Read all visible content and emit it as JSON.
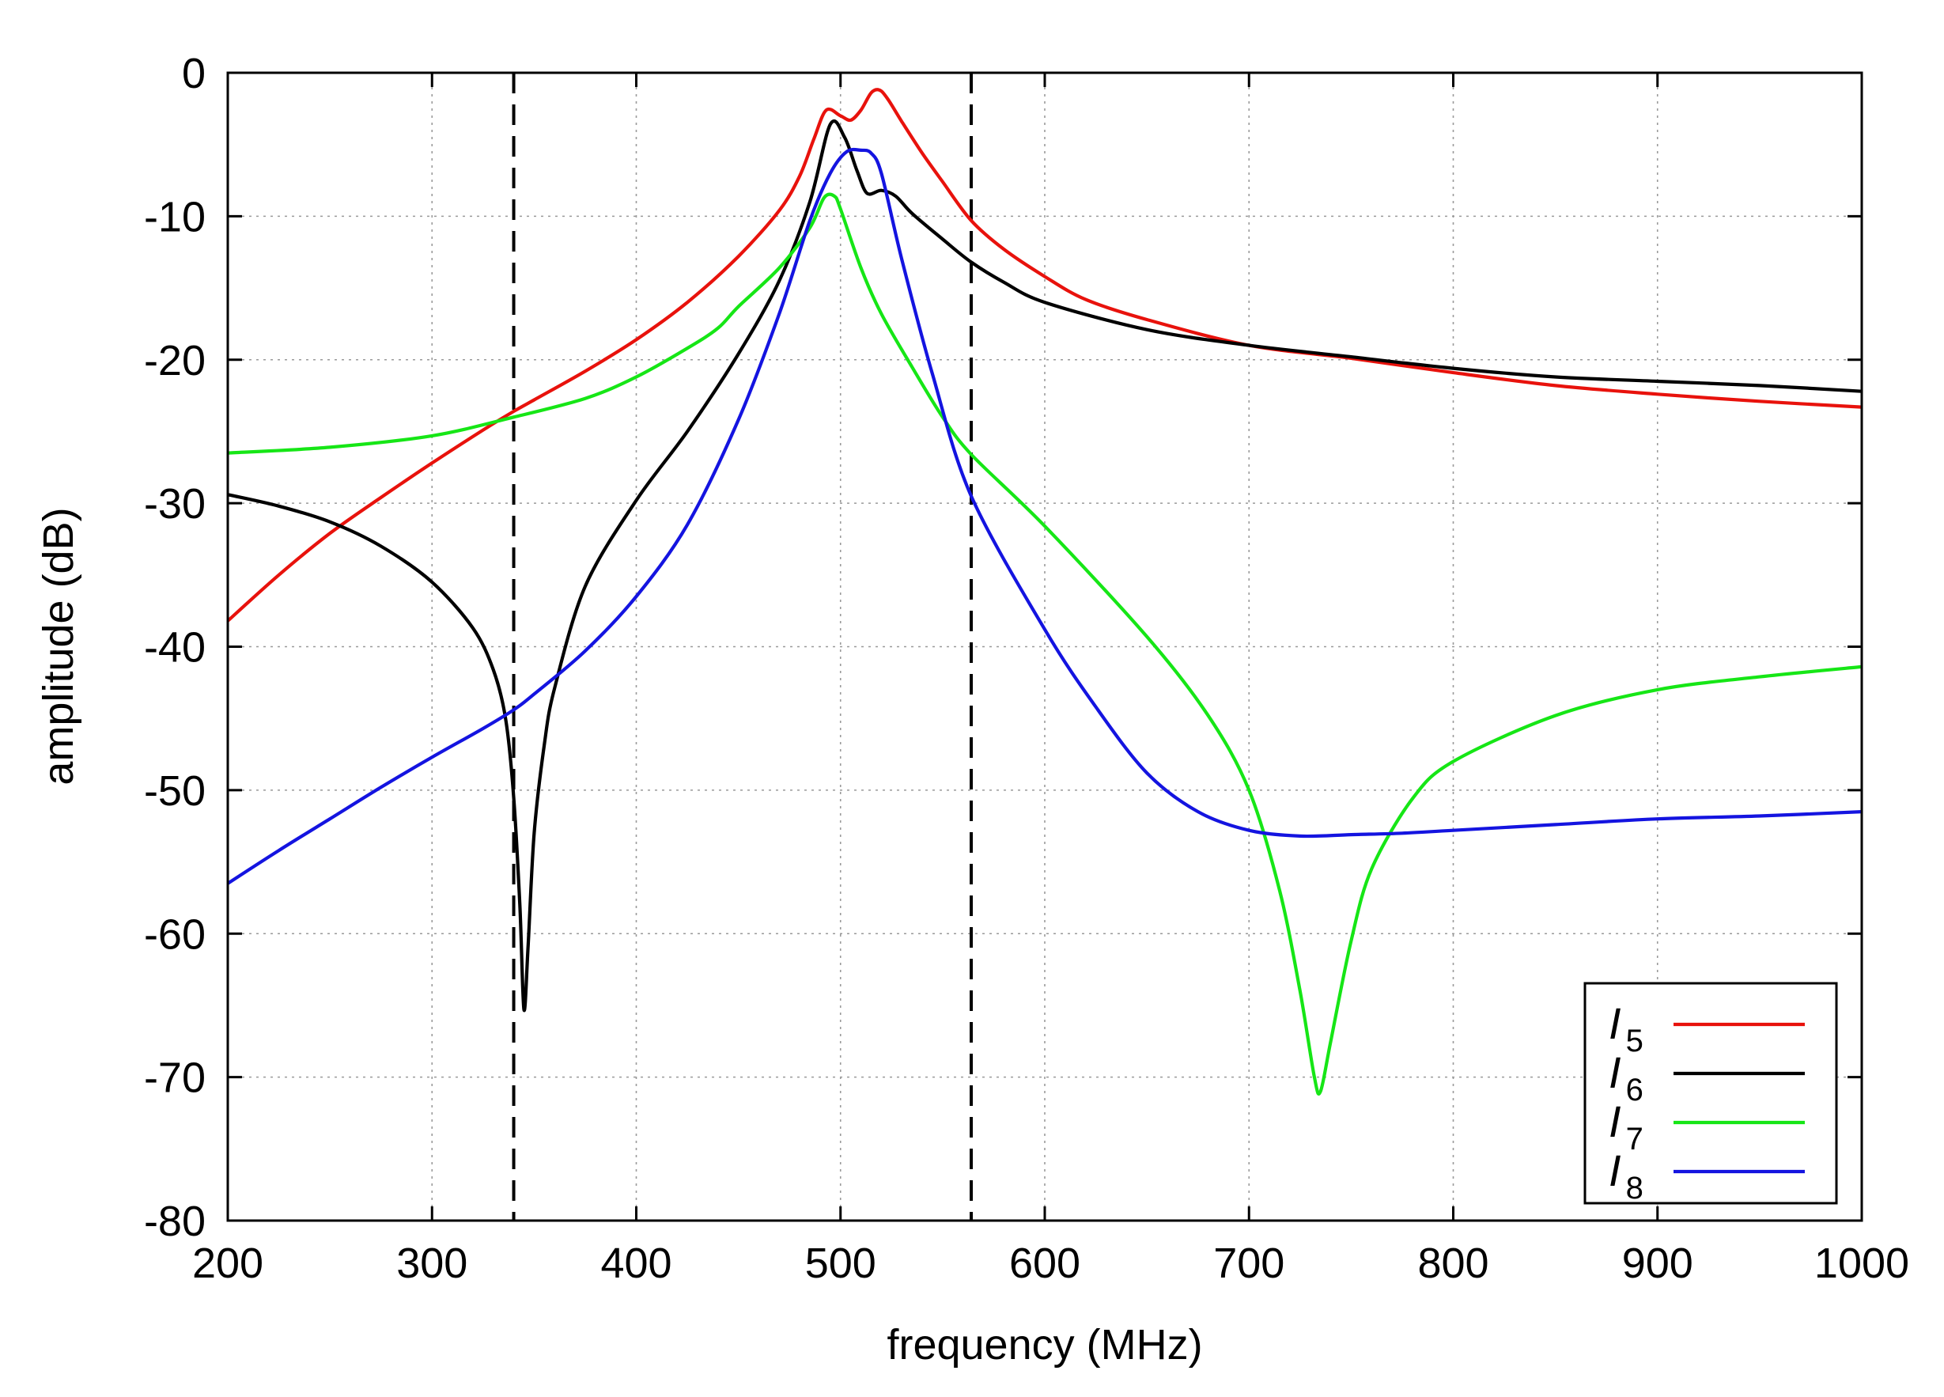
{
  "chart_data": {
    "type": "line",
    "title": "",
    "xlabel": "frequency  (MHz)",
    "ylabel": "amplitude (dB)",
    "xlim": [
      200,
      1000
    ],
    "ylim": [
      -80,
      0
    ],
    "xticks": [
      "200",
      "300",
      "400",
      "500",
      "600",
      "700",
      "800",
      "900",
      "1000"
    ],
    "yticks": [
      "0",
      "-10",
      "-20",
      "-30",
      "-40",
      "-50",
      "-60",
      "-70",
      "-80"
    ],
    "grid": true,
    "legend_position": "bottom-right",
    "vertical_dashed_lines": [
      340,
      564
    ],
    "series": [
      {
        "name": "I",
        "sub": "5",
        "color": "#e8120c",
        "x": [
          200,
          225,
          250,
          275,
          300,
          325,
          340,
          350,
          375,
          400,
          425,
          450,
          470,
          480,
          487,
          493,
          500,
          505,
          510,
          515,
          519,
          523,
          530,
          540,
          550,
          564,
          580,
          600,
          620,
          650,
          700,
          750,
          800,
          850,
          900,
          950,
          1000
        ],
        "y": [
          -38.2,
          -35.0,
          -32.1,
          -29.6,
          -27.2,
          -24.9,
          -23.6,
          -22.8,
          -20.8,
          -18.6,
          -16.0,
          -12.8,
          -9.6,
          -7.2,
          -4.6,
          -2.6,
          -3.0,
          -3.3,
          -2.6,
          -1.4,
          -1.2,
          -1.8,
          -3.4,
          -5.6,
          -7.6,
          -10.3,
          -12.3,
          -14.2,
          -15.8,
          -17.2,
          -19.0,
          -19.9,
          -20.9,
          -21.8,
          -22.4,
          -22.9,
          -23.3
        ]
      },
      {
        "name": "I",
        "sub": "6",
        "color": "#000000",
        "x": [
          200,
          225,
          250,
          275,
          300,
          320,
          330,
          336,
          340,
          343,
          345,
          347,
          350,
          355,
          360,
          375,
          400,
          425,
          450,
          470,
          485,
          495,
          502,
          508,
          513,
          520,
          527,
          535,
          550,
          564,
          580,
          600,
          650,
          700,
          750,
          800,
          850,
          900,
          950,
          1000
        ],
        "y": [
          -29.4,
          -30.2,
          -31.3,
          -33.0,
          -35.5,
          -38.7,
          -41.6,
          -45.0,
          -50.5,
          -58.0,
          -65.3,
          -61.0,
          -53.0,
          -46.8,
          -42.9,
          -35.8,
          -29.8,
          -25.0,
          -19.6,
          -14.5,
          -9.0,
          -3.6,
          -4.5,
          -6.8,
          -8.4,
          -8.2,
          -8.6,
          -9.8,
          -11.6,
          -13.2,
          -14.6,
          -16.0,
          -17.9,
          -19.0,
          -19.8,
          -20.6,
          -21.2,
          -21.5,
          -21.8,
          -22.2
        ]
      },
      {
        "name": "I",
        "sub": "7",
        "color": "#16e616",
        "x": [
          200,
          250,
          300,
          340,
          375,
          400,
          425,
          440,
          450,
          470,
          485,
          492,
          497,
          500,
          510,
          520,
          535,
          550,
          564,
          600,
          650,
          680,
          700,
          715,
          725,
          732,
          735,
          740,
          750,
          760,
          780,
          800,
          850,
          900,
          950,
          1000
        ],
        "y": [
          -26.5,
          -26.1,
          -25.3,
          -24.0,
          -22.7,
          -21.2,
          -19.2,
          -17.8,
          -16.3,
          -13.6,
          -10.8,
          -8.7,
          -8.6,
          -9.5,
          -13.6,
          -16.8,
          -20.5,
          -24.0,
          -26.6,
          -31.6,
          -39.3,
          -44.8,
          -50.0,
          -57.0,
          -64.0,
          -70.0,
          -71.0,
          -67.5,
          -60.5,
          -55.5,
          -50.6,
          -48.0,
          -44.8,
          -43.0,
          -42.1,
          -41.4
        ]
      },
      {
        "name": "I",
        "sub": "8",
        "color": "#1414e0",
        "x": [
          200,
          225,
          250,
          275,
          300,
          325,
          340,
          350,
          375,
          400,
          425,
          450,
          470,
          485,
          495,
          503,
          510,
          515,
          520,
          530,
          545,
          564,
          600,
          625,
          650,
          675,
          700,
          725,
          750,
          775,
          800,
          850,
          900,
          950,
          1000
        ],
        "y": [
          -56.5,
          -54.2,
          -52.0,
          -49.8,
          -47.7,
          -45.7,
          -44.4,
          -43.3,
          -40.3,
          -36.5,
          -31.5,
          -24.2,
          -16.8,
          -10.3,
          -7.0,
          -5.5,
          -5.4,
          -5.6,
          -7.0,
          -13.0,
          -21.0,
          -29.5,
          -38.8,
          -44.2,
          -48.8,
          -51.5,
          -52.8,
          -53.2,
          -53.1,
          -53.0,
          -52.8,
          -52.4,
          -52.0,
          -51.8,
          -51.5
        ]
      }
    ]
  }
}
